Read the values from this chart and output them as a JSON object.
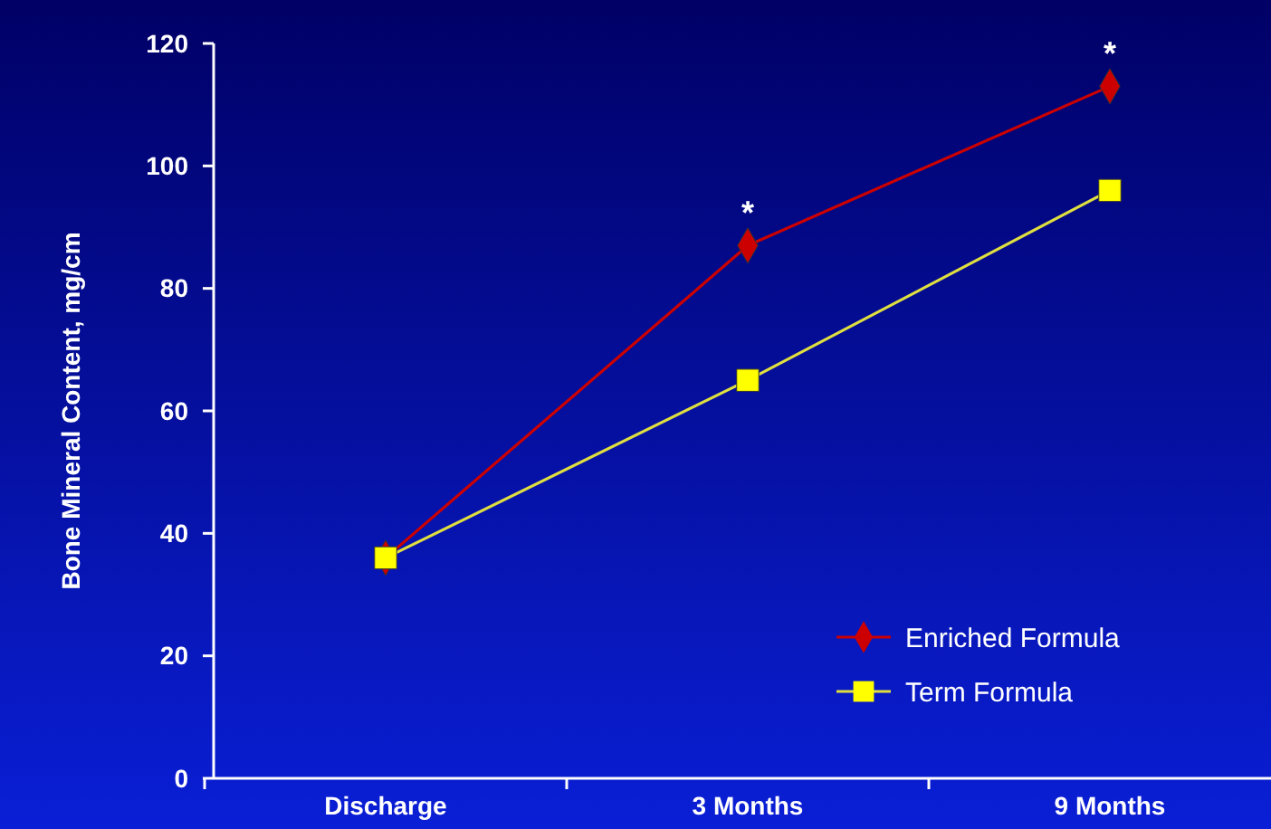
{
  "chart_data": {
    "type": "line",
    "ylabel": "Bone Mineral Content, mg/cm",
    "categories": [
      "Discharge",
      "3 Months",
      "9 Months"
    ],
    "series": [
      {
        "name": "Enriched Formula",
        "color": "#cc0000",
        "marker": "diamond",
        "values": [
          36,
          87,
          113
        ]
      },
      {
        "name": "Term Formula",
        "color": "#ffff00",
        "marker": "square",
        "values": [
          36,
          65,
          96
        ]
      }
    ],
    "ylim": [
      0,
      120
    ],
    "yticks": [
      0,
      20,
      40,
      60,
      80,
      100,
      120
    ],
    "grid": false,
    "legend": "bottom right",
    "annotations": [
      {
        "text": "*",
        "x": "3 Months",
        "y": 87
      },
      {
        "text": "*",
        "x": "9 Months",
        "y": 113
      }
    ]
  }
}
